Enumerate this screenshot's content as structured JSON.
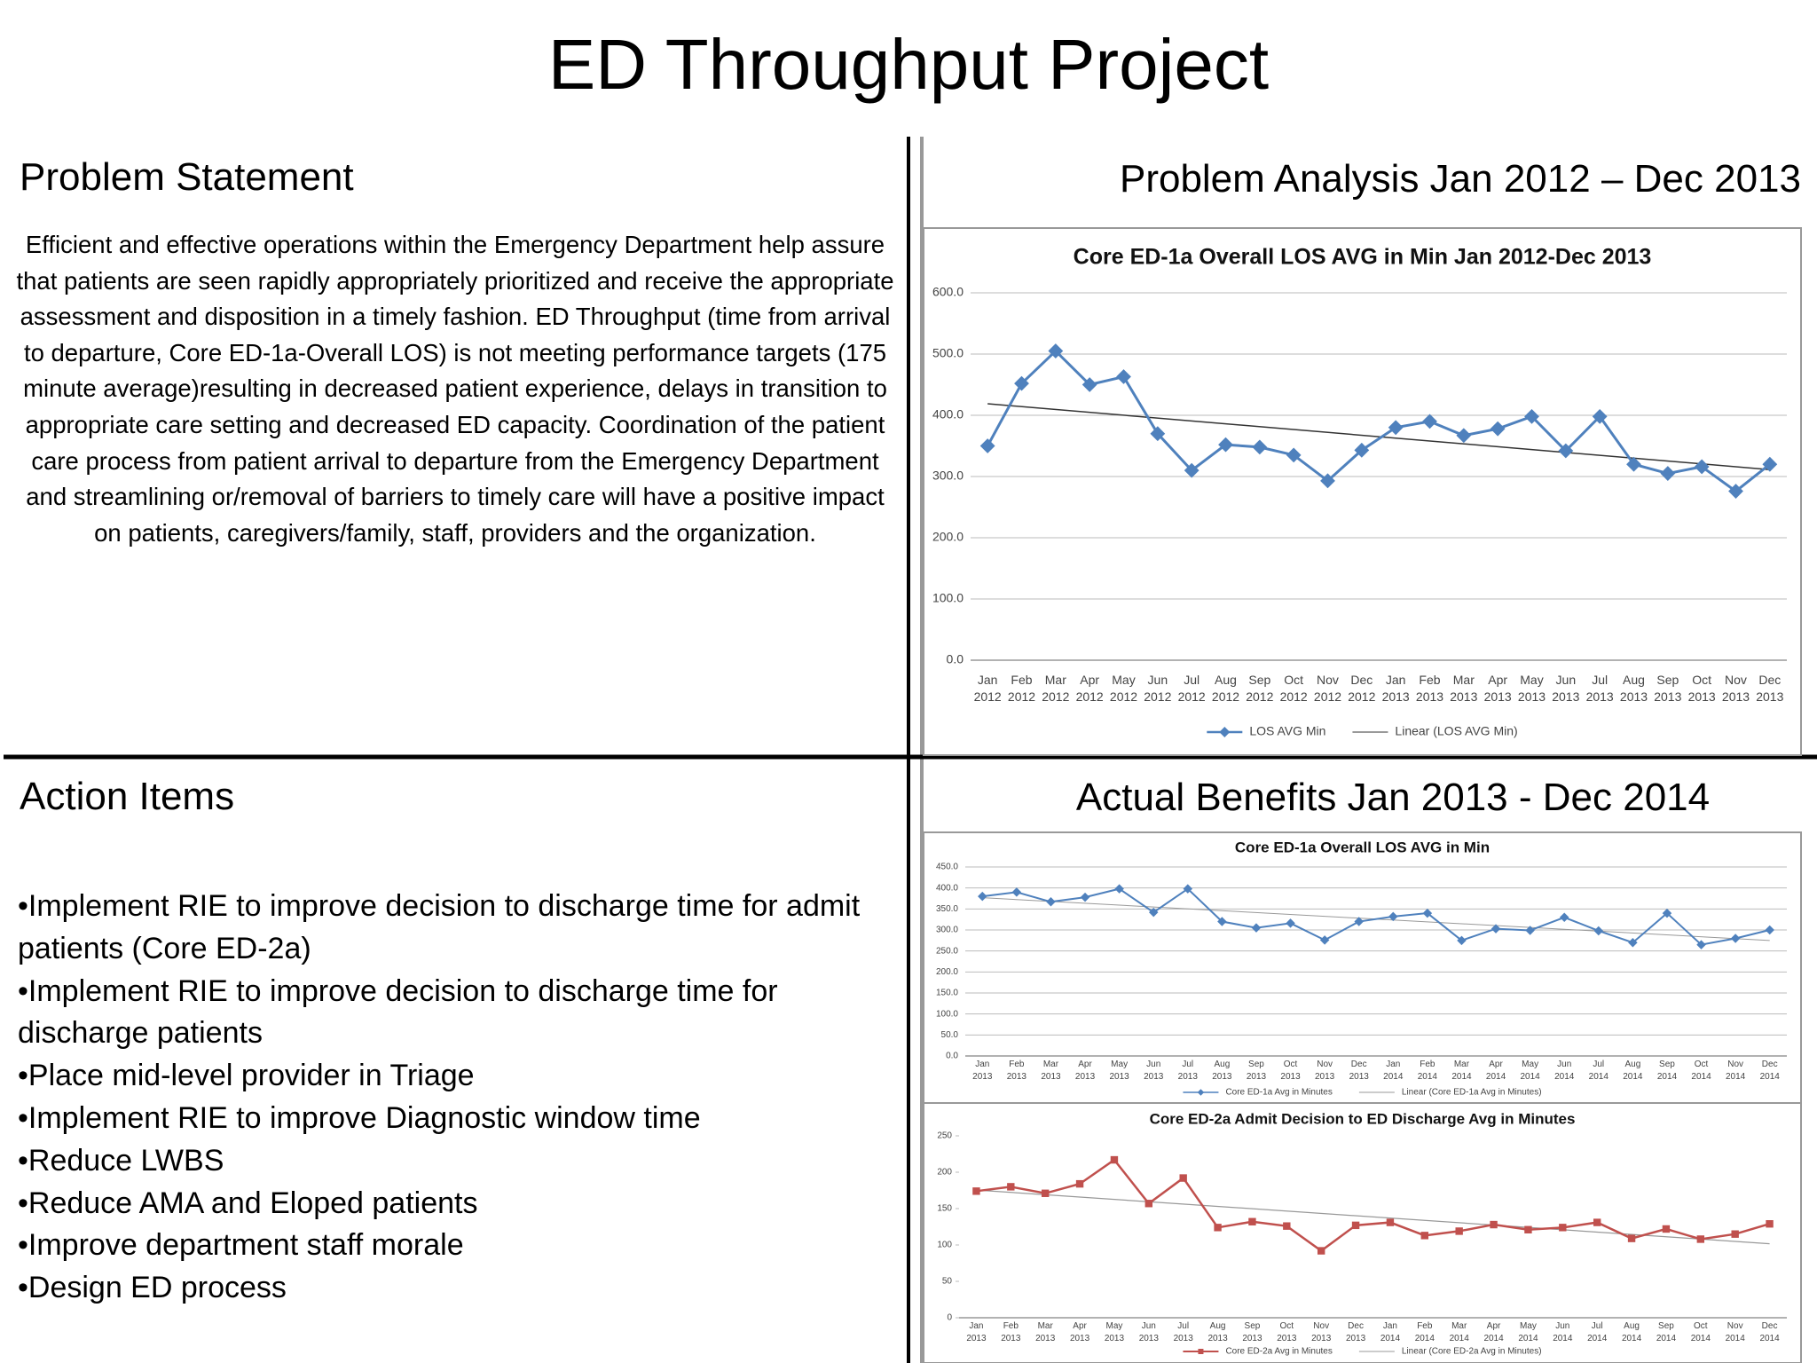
{
  "title": "ED Throughput Project",
  "problem_statement": {
    "heading": "Problem Statement",
    "text": "Efficient and effective operations within the Emergency Department help assure that patients are seen rapidly appropriately prioritized and receive the appropriate assessment and disposition in a timely fashion. ED Throughput (time from arrival to departure, Core ED-1a-Overall LOS) is not meeting performance targets (175 minute average)resulting in decreased patient experience, delays in transition to appropriate care setting and decreased ED capacity. Coordination of the patient care process from patient arrival to departure from the Emergency Department and streamlining or/removal of barriers to timely care will have a positive impact on patients, caregivers/family, staff, providers and the organization."
  },
  "action_items": {
    "heading": "Action Items",
    "items": [
      "•Implement RIE to improve decision to discharge time for admit patients (Core ED-2a)",
      "•Implement RIE to improve decision to discharge time for discharge patients",
      "•Place mid-level provider in Triage",
      "•Implement RIE to improve Diagnostic window time",
      "•Reduce LWBS",
      "•Reduce AMA and Eloped patients",
      "•Improve department staff morale",
      "•Design ED process"
    ]
  },
  "problem_analysis": {
    "heading": "Problem Analysis Jan 2012 – Dec 2013"
  },
  "actual_benefits": {
    "heading": "Actual Benefits Jan 2013 - Dec 2014"
  },
  "chart_data": [
    {
      "type": "line",
      "title": "Core ED-1a Overall LOS AVG in Min Jan 2012-Dec 2013",
      "categories": [
        "Jan 2012",
        "Feb 2012",
        "Mar 2012",
        "Apr 2012",
        "May 2012",
        "Jun 2012",
        "Jul 2012",
        "Aug 2012",
        "Sep 2012",
        "Oct 2012",
        "Nov 2012",
        "Dec 2012",
        "Jan 2013",
        "Feb 2013",
        "Mar 2013",
        "Apr 2013",
        "May 2013",
        "Jun 2013",
        "Jul 2013",
        "Aug 2013",
        "Sep 2013",
        "Oct 2013",
        "Nov 2013",
        "Dec 2013"
      ],
      "series": [
        {
          "name": "LOS AVG Min",
          "color": "#4f81bd",
          "marker": "diamond",
          "values": [
            350,
            452,
            505,
            450,
            463,
            370,
            310,
            352,
            348,
            335,
            293,
            343,
            380,
            390,
            367,
            378,
            398,
            342,
            398,
            320,
            305,
            316,
            276,
            320
          ]
        }
      ],
      "trendline": {
        "name": "Linear (LOS AVG Min)",
        "color": "#333333"
      },
      "ylim": [
        0,
        600
      ],
      "yticks": [
        {
          "value": 0,
          "label": "0.0"
        },
        {
          "value": 100,
          "label": "100.0"
        },
        {
          "value": 200,
          "label": "200.0"
        },
        {
          "value": 300,
          "label": "300.0"
        },
        {
          "value": 400,
          "label": "400.0"
        },
        {
          "value": 500,
          "label": "500.0"
        },
        {
          "value": 600,
          "label": "600.0"
        }
      ],
      "grid": true,
      "legend": "bottom"
    },
    {
      "type": "line",
      "title": "Core ED-1a Overall LOS AVG in Min",
      "categories": [
        "Jan 2013",
        "Feb 2013",
        "Mar 2013",
        "Apr 2013",
        "May 2013",
        "Jun 2013",
        "Jul 2013",
        "Aug 2013",
        "Sep 2013",
        "Oct 2013",
        "Nov 2013",
        "Dec 2013",
        "Jan 2014",
        "Feb 2014",
        "Mar 2014",
        "Apr 2014",
        "May 2014",
        "Jun 2014",
        "Jul 2014",
        "Aug 2014",
        "Sep 2014",
        "Oct 2014",
        "Nov 2014",
        "Dec 2014"
      ],
      "series": [
        {
          "name": "Core ED-1a Avg in Minutes",
          "color": "#4f81bd",
          "marker": "diamond",
          "values": [
            380,
            390,
            367,
            378,
            398,
            342,
            398,
            320,
            305,
            316,
            276,
            320,
            332,
            340,
            275,
            303,
            299,
            330,
            298,
            270,
            340,
            265,
            280,
            300
          ]
        }
      ],
      "trendline": {
        "name": "Linear (Core ED-1a Avg in Minutes)",
        "color": "#999999"
      },
      "ylim": [
        0,
        450
      ],
      "yticks": [
        {
          "value": 0,
          "label": "0.0"
        },
        {
          "value": 50,
          "label": "50.0"
        },
        {
          "value": 100,
          "label": "100.0"
        },
        {
          "value": 150,
          "label": "150.0"
        },
        {
          "value": 200,
          "label": "200.0"
        },
        {
          "value": 250,
          "label": "250.0"
        },
        {
          "value": 300,
          "label": "300.0"
        },
        {
          "value": 350,
          "label": "350.0"
        },
        {
          "value": 400,
          "label": "400.0"
        },
        {
          "value": 450,
          "label": "450.0"
        }
      ],
      "grid": true,
      "legend": "bottom"
    },
    {
      "type": "line",
      "title": "Core ED-2a Admit Decision to ED Discharge Avg in Minutes",
      "categories": [
        "Jan 2013",
        "Feb 2013",
        "Mar 2013",
        "Apr 2013",
        "May 2013",
        "Jun 2013",
        "Jul 2013",
        "Aug 2013",
        "Sep 2013",
        "Oct 2013",
        "Nov 2013",
        "Dec 2013",
        "Jan 2014",
        "Feb 2014",
        "Mar 2014",
        "Apr 2014",
        "May 2014",
        "Jun 2014",
        "Jul 2014",
        "Aug 2014",
        "Sep 2014",
        "Oct 2014",
        "Nov 2014",
        "Dec 2014"
      ],
      "series": [
        {
          "name": "Core ED-2a Avg in Minutes",
          "color": "#c0504d",
          "marker": "square",
          "values": [
            174,
            180,
            171,
            184,
            217,
            157,
            192,
            124,
            132,
            126,
            92,
            127,
            131,
            113,
            119,
            128,
            121,
            124,
            131,
            109,
            122,
            108,
            115,
            129
          ]
        }
      ],
      "trendline": {
        "name": "Linear (Core ED-2a Avg in Minutes)",
        "color": "#999999"
      },
      "ylim": [
        0,
        250
      ],
      "yticks": [
        0,
        50,
        100,
        150,
        200,
        250
      ],
      "grid": false,
      "legend": "bottom"
    }
  ]
}
